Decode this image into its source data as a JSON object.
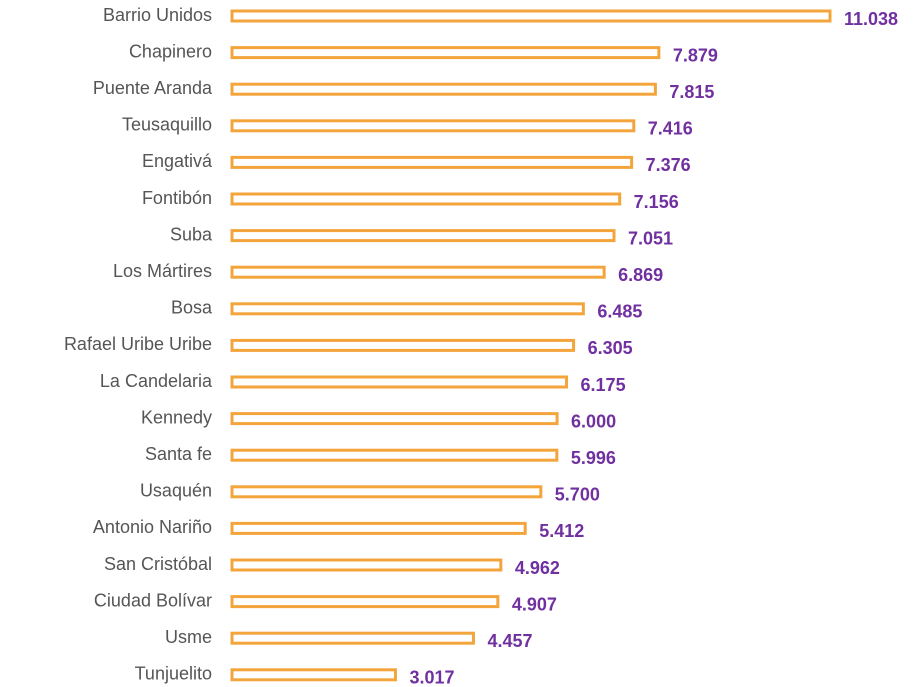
{
  "chart_data": {
    "type": "bar",
    "orientation": "horizontal",
    "categories": [
      "Barrio Unidos",
      "Chapinero",
      "Puente Aranda",
      "Teusaquillo",
      "Engativá",
      "Fontibón",
      "Suba",
      "Los Mártires",
      "Bosa",
      "Rafael Uribe Uribe",
      "La Candelaria",
      "Kennedy",
      "Santa fe",
      "Usaquén",
      "Antonio Nariño",
      "San Cristóbal",
      "Ciudad Bolívar",
      "Usme",
      "Tunjuelito"
    ],
    "values": [
      11038,
      7879,
      7815,
      7416,
      7376,
      7156,
      7051,
      6869,
      6485,
      6305,
      6175,
      6000,
      5996,
      5700,
      5412,
      4962,
      4907,
      4457,
      3017
    ],
    "value_labels": [
      "11.038",
      "7.879",
      "7.815",
      "7.416",
      "7.376",
      "7.156",
      "7.051",
      "6.869",
      "6.485",
      "6.305",
      "6.175",
      "6.000",
      "5.996",
      "5.700",
      "5.412",
      "4.962",
      "4.907",
      "4.457",
      "3.017"
    ],
    "color": "#f3a53c",
    "label_color": "#7030a0"
  }
}
